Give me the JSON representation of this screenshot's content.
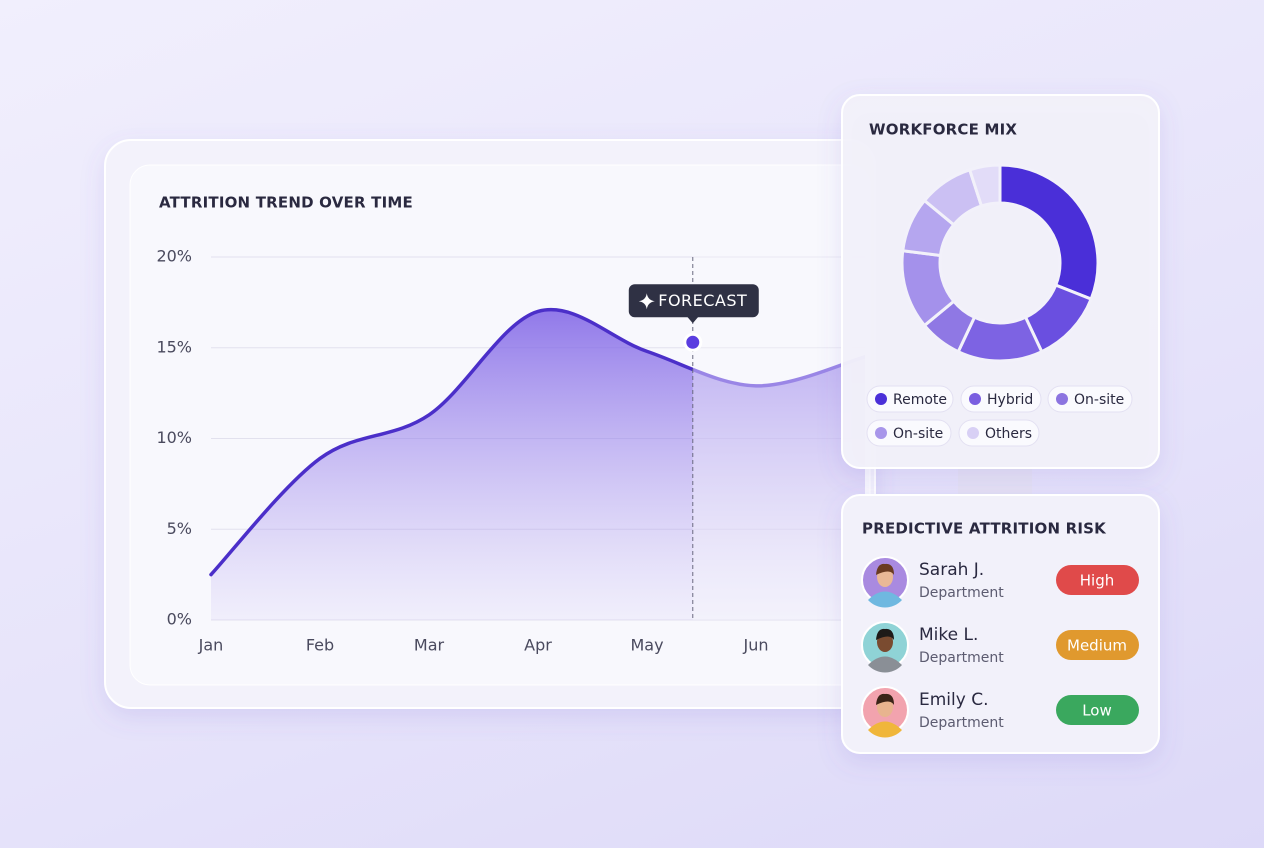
{
  "chart_data": [
    {
      "type": "line",
      "title": "ATTRITION TREND OVER TIME",
      "categories": [
        "Jan",
        "Feb",
        "Mar",
        "Apr",
        "May",
        "Jun",
        null
      ],
      "values": [
        2.5,
        8.9,
        11.3,
        17.0,
        14.8,
        12.9,
        14.5
      ],
      "color": "#4b2fc9",
      "forecast_color": "#9a86e6",
      "ylim": [
        0,
        20
      ],
      "yticks": [
        {
          "value": 0,
          "label": "0%"
        },
        {
          "value": 5,
          "label": "5%"
        },
        {
          "value": 10,
          "label": "10%"
        },
        {
          "value": 15,
          "label": "15%"
        },
        {
          "value": 20,
          "label": "20%"
        }
      ],
      "grid": true,
      "annotation": {
        "label": "FORECAST",
        "value": 15.3
      }
    },
    {
      "type": "donut",
      "title": "WORKFORCE MIX",
      "values": [
        31,
        12,
        14,
        7,
        13,
        9,
        9,
        5
      ],
      "colors": [
        "#4a2fd8",
        "#6a4fe0",
        "#7d63e3",
        "#8f78e4",
        "#a491eb",
        "#b5a6ef",
        "#cbc0f3",
        "#e2dcf8"
      ],
      "legend": [
        {
          "name": "Remote",
          "color": "#4a2fd8"
        },
        {
          "name": "Hybrid",
          "color": "#7a5ee0"
        },
        {
          "name": "On-site",
          "color": "#8c74e0"
        },
        {
          "name": "On-site",
          "color": "#a896ea"
        },
        {
          "name": "Others",
          "color": "#d8d0f5"
        }
      ]
    }
  ],
  "risk_panel": {
    "title": "PREDICTIVE ATTRITION RISK",
    "rows": [
      {
        "name": "Sarah J.",
        "department": "Department",
        "risk": "High",
        "color": "#e04a4a",
        "avatar": "#a98ae0"
      },
      {
        "name": "Mike L.",
        "department": "Department",
        "risk": "Medium",
        "color": "#e0992e",
        "avatar": "#8fd3d6"
      },
      {
        "name": "Emily C.",
        "department": "Department",
        "risk": "Low",
        "color": "#3aa85e",
        "avatar": "#f2a3ae"
      }
    ]
  }
}
